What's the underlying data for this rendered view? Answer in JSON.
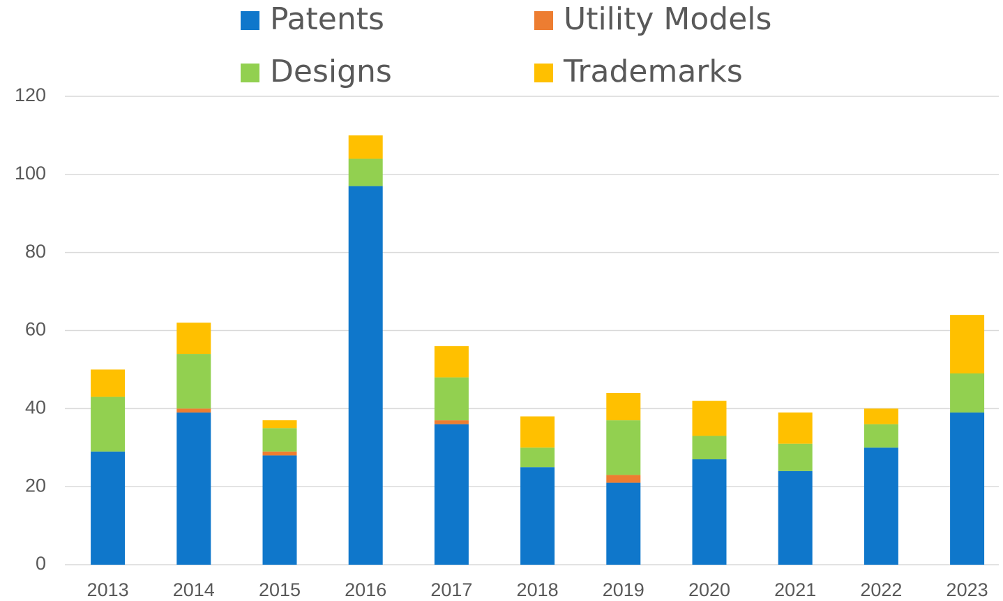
{
  "chart_data": {
    "type": "stacked_bar",
    "categories": [
      "2013",
      "2014",
      "2015",
      "2016",
      "2017",
      "2018",
      "2019",
      "2020",
      "2021",
      "2022",
      "2023"
    ],
    "series": [
      {
        "name": "Patents",
        "color": "#0f77cb",
        "values": [
          29,
          39,
          28,
          97,
          36,
          25,
          21,
          27,
          24,
          30,
          39
        ]
      },
      {
        "name": "Utility Models",
        "color": "#ed7d31",
        "values": [
          0,
          1,
          1,
          0,
          1,
          0,
          2,
          0,
          0,
          0,
          0
        ]
      },
      {
        "name": "Designs",
        "color": "#92d050",
        "values": [
          14,
          14,
          6,
          7,
          11,
          5,
          14,
          6,
          7,
          6,
          10
        ]
      },
      {
        "name": "Trademarks",
        "color": "#ffc000",
        "values": [
          7,
          8,
          2,
          6,
          8,
          8,
          7,
          9,
          8,
          4,
          15
        ]
      }
    ],
    "ylim": [
      0,
      120
    ],
    "yticks": [
      0,
      20,
      40,
      60,
      80,
      100,
      120
    ],
    "grid": true,
    "legend": "top"
  }
}
